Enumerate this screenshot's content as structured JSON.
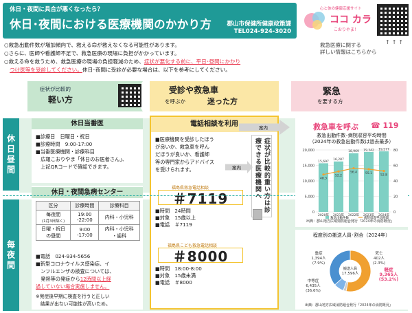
{
  "header": {
    "subtitle": "休日・夜間に具合が悪くなったら？",
    "title": "休日･夜間における医療機関のかかり方",
    "department": "郡山市保健所健康政策課",
    "tel": "TEL024-924-3020"
  },
  "logo": {
    "tagline": "心と体の健康応援サイト",
    "name": "ココ カラ",
    "sub": "こおりやま！"
  },
  "qr_note": {
    "line1": "救急医療に関する",
    "line2": "詳しい情報はこちらから",
    "arrows": "↑↑↑"
  },
  "intro": {
    "line1": "○救急出動件数が増加傾向で、救える命が救えなくなる可能性があります。",
    "line2": "○さらに、医師や看護師不足で、救急医療の現場に負担がかかっています。",
    "line3a": "○救える命を救うため、救急医療の現場の負担軽減のため、",
    "line3b": "症状が悪化する前に、平日･昼間にかかり",
    "line4a": "つけ医等を受診してください。",
    "line4b": "休日･夜間に受診が必要な場合は、以下を参考にしてください。"
  },
  "rows": {
    "day": "休日昼間",
    "night": "毎夜間"
  },
  "col1": {
    "a": "症状が比較的",
    "b": "軽い方"
  },
  "col2": {
    "a": "受診や救急車",
    "b": "を呼ぶか",
    "c": "迷った方"
  },
  "col3": {
    "a": "緊急",
    "b": "を要する方"
  },
  "today": {
    "title": "休日当番医",
    "l1": "■診療日　日曜日・祝日",
    "l2": "■診療時間　9:00-17:00",
    "l3": "■当番医療機関・診療科目",
    "l4": "　広報こおりやま「休日のお医者さん」、",
    "l5": "　上記QRコードで確認できます。"
  },
  "night": {
    "title": "休日・夜間急病センター",
    "headers": [
      "区分",
      "診療時間",
      "診療科目"
    ],
    "r1": [
      "毎夜間",
      "(1月3日除く)",
      "19:00",
      "-22:00",
      "内科・小児科"
    ],
    "r2": [
      "日曜・祝日",
      "の昼間",
      "9:00",
      "-17:00",
      "内科・小児科",
      "・歯科"
    ],
    "tel": "■電話　024-934-5656",
    "c1": "■新型コロナウイルス感染症、イ",
    "c2": "　ンフルエンザの検査については、",
    "c3": "　発熱等の発症から",
    "c3r": "12時間以上経",
    "c4r": "過していない場合実施しません。",
    "n1": "※発症後早期に検査を行うと正しい",
    "n2": "　結果が出ない可能性が高いため。"
  },
  "phone": {
    "title": "電話相談を利用",
    "p1": "■医療機関を受診したほう",
    "p2": "が良いか、救急車を呼ん",
    "p3": "だほうが良いか、看護師",
    "p4": "等の専門家からアドバイス",
    "p5": "を受けられます。",
    "s1_label": "福島県救急電話相談",
    "s1_num": "＃7119",
    "s1_l1": "■時間　24時間",
    "s1_l2": "■対象　15歳以上",
    "s1_l3": "■電話　＃7119",
    "s2_label": "福島県こども救急電話相談",
    "s2_num": "＃8000",
    "s2_l1": "■時間　18:00-8:00",
    "s2_l2": "■対象　15歳未満",
    "s2_l3": "■電話　＃8000"
  },
  "side": "症状が比較的重い方は診療できる医療機関へ",
  "arrows": {
    "a1": "案内",
    "a2": "案内"
  },
  "ambulance": {
    "title": "救急車を呼ぶ",
    "number": "119",
    "chart_title1": "救急出動件数･病院収容平均時間",
    "chart_title2": "（2024年の救急出動件数は過去最多）",
    "source": "出典：郡山地方広域消防組合発行「2024年の消防概況」"
  },
  "chart_data": {
    "type": "bar",
    "categories": [
      "2020年",
      "2021年",
      "2022年",
      "2023年",
      "2024年"
    ],
    "series": [
      {
        "name": "救急出動件数",
        "values": [
          15697,
          16287,
          18969,
          19342,
          19577
        ]
      },
      {
        "name": "病院収容平均時間(分)",
        "values": [
          48.3,
          52.2,
          56.4,
          55.1,
          52.8
        ]
      }
    ],
    "y_ticks": [
      "20,000",
      "15,000",
      "10,000",
      "5,000",
      "0"
    ],
    "y2_ticks": [
      "80",
      "60",
      "40",
      "20",
      "0"
    ],
    "bar_labels": [
      "15,697",
      "16,287",
      "18,969",
      "19,342",
      "19,577"
    ],
    "line_labels": [
      "48.3",
      "52.2",
      "56.4",
      "55.1",
      "52.8"
    ],
    "ylim": [
      0,
      20000
    ],
    "y2lim": [
      0,
      80
    ],
    "legend": [
      "救急出動件数",
      "病院収容平均時間"
    ],
    "colors": {
      "bar": "#7fd0c4",
      "line": "#f0a030"
    }
  },
  "pie": {
    "title": "程度別の搬送人員･割合（2024年）",
    "center": [
      "搬送人員",
      "17,596人"
    ],
    "labels": {
      "severe": [
        "重症",
        "1,394人",
        "(7.9%)"
      ],
      "death": [
        "死亡",
        "402人",
        "(2.3%)"
      ],
      "moderate": [
        "中等症",
        "6,435人",
        "(36.6%)"
      ],
      "mild": [
        "軽症",
        "9,365人",
        "(53.2%)"
      ]
    },
    "source": "出典：郡山地方広域消防組合発行「2024年の消防概況」"
  },
  "pie_data": {
    "type": "pie",
    "slices": [
      {
        "name": "軽症",
        "value": 53.2,
        "color": "#f0a030"
      },
      {
        "name": "死亡",
        "value": 2.3,
        "color": "#cccccc"
      },
      {
        "name": "重症",
        "value": 7.9,
        "color": "#7fb4e8"
      },
      {
        "name": "中等症",
        "value": 36.6,
        "color": "#4a90d0"
      }
    ]
  }
}
